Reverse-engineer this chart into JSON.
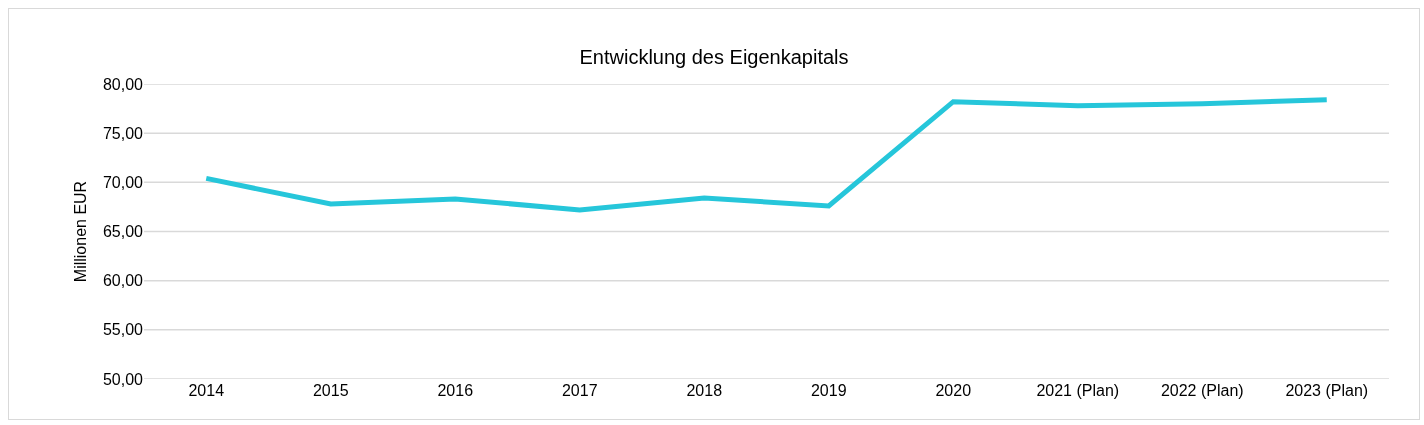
{
  "chart_data": {
    "type": "line",
    "title": "Entwicklung des Eigenkapitals",
    "ylabel": "Millionen EUR",
    "categories": [
      "2014",
      "2015",
      "2016",
      "2017",
      "2018",
      "2019",
      "2020",
      "2021 (Plan)",
      "2022 (Plan)",
      "2023 (Plan)"
    ],
    "series": [
      {
        "color": "#26c6da",
        "values": [
          70.4,
          67.8,
          68.3,
          67.2,
          68.4,
          67.6,
          78.2,
          77.8,
          78.0,
          78.4
        ]
      }
    ],
    "ylim": [
      50,
      80
    ],
    "yticks": [
      {
        "value": 50,
        "label": "50,00"
      },
      {
        "value": 55,
        "label": "55,00"
      },
      {
        "value": 60,
        "label": "60,00"
      },
      {
        "value": 65,
        "label": "65,00"
      },
      {
        "value": 70,
        "label": "70,00"
      },
      {
        "value": 75,
        "label": "75,00"
      },
      {
        "value": 80,
        "label": "80,00"
      }
    ],
    "grid": "y",
    "marker": "none",
    "line_style": "solid"
  }
}
